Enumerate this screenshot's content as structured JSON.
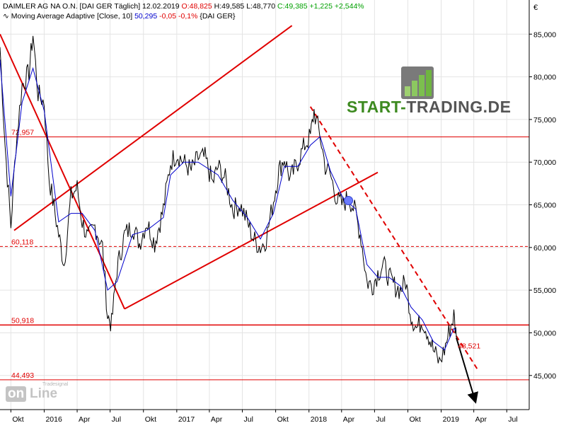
{
  "header": {
    "line1": {
      "instrument": "DAIMLER AG NA O.N. [DAI GER",
      "frequency": "Täglich]",
      "date": "12.02.2019",
      "open": "O:48,825",
      "high": "H:49,585",
      "low": "L:48,770",
      "close": "C:49,385",
      "change": "+1,225",
      "change_pct": "+2,544%"
    },
    "line2": {
      "label": "Moving Average Adaptive [Close, 10]",
      "value": "50,295",
      "change": "-0,05",
      "change_pct": "-0,1%",
      "exchange": "{DAI GER}"
    }
  },
  "watermark": {
    "brand_a": "START-",
    "brand_b": "TRADING.DE",
    "logo_a": "on",
    "logo_b": "Line",
    "logo_small": "Tradesignal"
  },
  "colors": {
    "price": "#000000",
    "ma": "#0000cc",
    "trend": "#e00000",
    "marker": "#6c7cff",
    "brand_green": "#3d8a20",
    "brand_gray": "#555555"
  },
  "chart_data": {
    "type": "line",
    "currency": "€",
    "x_range": [
      "2015-09-01",
      "2019-09-01"
    ],
    "ylim": [
      41,
      89
    ],
    "yticks": [
      45000,
      50000,
      55000,
      60000,
      65000,
      70000,
      75000,
      80000,
      85000
    ],
    "ytick_labels": [
      "45,000",
      "50,000",
      "55,000",
      "60,000",
      "65,000",
      "70,000",
      "75,000",
      "80,000",
      "85,000"
    ],
    "xticks": [
      {
        "label": "Okt",
        "date": "2015-10-01"
      },
      {
        "label": "2016",
        "date": "2016-01-01"
      },
      {
        "label": "Apr",
        "date": "2016-04-01"
      },
      {
        "label": "Jul",
        "date": "2016-07-01"
      },
      {
        "label": "Okt",
        "date": "2016-10-01"
      },
      {
        "label": "2017",
        "date": "2017-01-01"
      },
      {
        "label": "Apr",
        "date": "2017-04-01"
      },
      {
        "label": "Jul",
        "date": "2017-07-01"
      },
      {
        "label": "Okt",
        "date": "2017-10-01"
      },
      {
        "label": "2018",
        "date": "2018-01-01"
      },
      {
        "label": "Apr",
        "date": "2018-04-01"
      },
      {
        "label": "Jul",
        "date": "2018-07-01"
      },
      {
        "label": "Okt",
        "date": "2018-10-01"
      },
      {
        "label": "2019",
        "date": "2019-01-01"
      },
      {
        "label": "Apr",
        "date": "2019-04-01"
      },
      {
        "label": "Jul",
        "date": "2019-07-01"
      }
    ],
    "horizontal_levels": [
      {
        "value": 72.957,
        "label": "72,957",
        "style": "solid"
      },
      {
        "value": 60.118,
        "label": "60,118",
        "style": "dashed"
      },
      {
        "value": 50.918,
        "label": "50,918",
        "style": "solid"
      },
      {
        "value": 44.493,
        "label": "44,493",
        "style": "solid"
      }
    ],
    "trend_lines": [
      {
        "from": [
          "2015-09-01",
          85.0
        ],
        "to": [
          "2016-08-10",
          52.8
        ],
        "style": "solid"
      },
      {
        "from": [
          "2015-10-10",
          62.0
        ],
        "to": [
          "2017-11-15",
          86.0
        ],
        "style": "solid"
      },
      {
        "from": [
          "2016-08-10",
          52.8
        ],
        "to": [
          "2018-07-10",
          68.8
        ],
        "style": "solid"
      },
      {
        "from": [
          "2018-01-05",
          76.5
        ],
        "to": [
          "2019-04-10",
          45.8
        ],
        "style": "dashed"
      },
      {
        "from": [
          "2019-02-12",
          49.4
        ],
        "to": [
          "2019-04-05",
          42.0
        ],
        "style": "arrow"
      }
    ],
    "annotations": [
      {
        "label": "48,521",
        "date": "2019-02-12",
        "value": 48.521
      },
      {
        "marker": "circle",
        "date": "2018-04-20",
        "value": 65.5
      }
    ],
    "series": [
      {
        "name": "DAIMLER AG NA O.N.",
        "points": [
          [
            "2015-09-01",
            83.5
          ],
          [
            "2015-09-15",
            72.0
          ],
          [
            "2015-10-01",
            62.5
          ],
          [
            "2015-10-15",
            72.0
          ],
          [
            "2015-11-01",
            79.0
          ],
          [
            "2015-11-20",
            80.5
          ],
          [
            "2015-12-01",
            85.0
          ],
          [
            "2015-12-15",
            78.0
          ],
          [
            "2016-01-01",
            77.0
          ],
          [
            "2016-01-15",
            68.0
          ],
          [
            "2016-02-10",
            61.5
          ],
          [
            "2016-02-25",
            58.0
          ],
          [
            "2016-03-15",
            66.0
          ],
          [
            "2016-04-01",
            67.0
          ],
          [
            "2016-04-15",
            63.0
          ],
          [
            "2016-05-01",
            61.0
          ],
          [
            "2016-05-20",
            62.5
          ],
          [
            "2016-06-10",
            60.0
          ],
          [
            "2016-06-24",
            52.0
          ],
          [
            "2016-07-05",
            51.0
          ],
          [
            "2016-07-20",
            57.5
          ],
          [
            "2016-08-10",
            61.5
          ],
          [
            "2016-09-01",
            62.5
          ],
          [
            "2016-09-20",
            60.5
          ],
          [
            "2016-10-10",
            63.0
          ],
          [
            "2016-11-01",
            60.5
          ],
          [
            "2016-11-25",
            64.5
          ],
          [
            "2016-12-15",
            70.0
          ],
          [
            "2017-01-01",
            71.0
          ],
          [
            "2017-01-20",
            70.0
          ],
          [
            "2017-02-10",
            69.0
          ],
          [
            "2017-03-01",
            70.5
          ],
          [
            "2017-03-20",
            70.5
          ],
          [
            "2017-04-10",
            67.5
          ],
          [
            "2017-04-25",
            69.5
          ],
          [
            "2017-05-15",
            68.0
          ],
          [
            "2017-06-05",
            64.5
          ],
          [
            "2017-06-25",
            65.0
          ],
          [
            "2017-07-15",
            63.0
          ],
          [
            "2017-08-01",
            61.0
          ],
          [
            "2017-08-20",
            60.0
          ],
          [
            "2017-09-05",
            61.0
          ],
          [
            "2017-09-25",
            65.5
          ],
          [
            "2017-10-10",
            69.0
          ],
          [
            "2017-10-25",
            70.5
          ],
          [
            "2017-11-10",
            68.0
          ],
          [
            "2017-12-01",
            70.0
          ],
          [
            "2017-12-20",
            72.0
          ],
          [
            "2018-01-05",
            73.0
          ],
          [
            "2018-01-15",
            76.0
          ],
          [
            "2018-02-01",
            73.0
          ],
          [
            "2018-02-15",
            69.5
          ],
          [
            "2018-03-01",
            68.5
          ],
          [
            "2018-03-20",
            65.5
          ],
          [
            "2018-04-05",
            65.0
          ],
          [
            "2018-04-20",
            66.0
          ],
          [
            "2018-05-10",
            64.0
          ],
          [
            "2018-05-25",
            61.0
          ],
          [
            "2018-06-10",
            56.0
          ],
          [
            "2018-06-25",
            55.5
          ],
          [
            "2018-07-10",
            57.0
          ],
          [
            "2018-07-25",
            58.0
          ],
          [
            "2018-08-10",
            56.5
          ],
          [
            "2018-08-25",
            55.5
          ],
          [
            "2018-09-10",
            55.0
          ],
          [
            "2018-09-25",
            56.0
          ],
          [
            "2018-10-10",
            52.0
          ],
          [
            "2018-10-25",
            50.5
          ],
          [
            "2018-11-10",
            51.5
          ],
          [
            "2018-11-25",
            50.0
          ],
          [
            "2018-12-10",
            48.0
          ],
          [
            "2018-12-27",
            46.5
          ],
          [
            "2019-01-10",
            48.0
          ],
          [
            "2019-01-25",
            50.5
          ],
          [
            "2019-02-05",
            52.0
          ],
          [
            "2019-02-12",
            49.4
          ]
        ]
      },
      {
        "name": "Moving Average Adaptive [Close, 10]",
        "points": [
          [
            "2015-09-01",
            82.0
          ],
          [
            "2015-10-01",
            66.0
          ],
          [
            "2015-11-01",
            77.0
          ],
          [
            "2015-12-01",
            81.0
          ],
          [
            "2016-01-01",
            76.0
          ],
          [
            "2016-02-10",
            63.0
          ],
          [
            "2016-03-15",
            64.0
          ],
          [
            "2016-04-15",
            64.0
          ],
          [
            "2016-05-20",
            62.0
          ],
          [
            "2016-06-24",
            55.0
          ],
          [
            "2016-07-20",
            56.0
          ],
          [
            "2016-09-01",
            61.5
          ],
          [
            "2016-10-10",
            62.0
          ],
          [
            "2016-11-25",
            63.5
          ],
          [
            "2016-12-15",
            68.5
          ],
          [
            "2017-01-20",
            70.0
          ],
          [
            "2017-03-01",
            70.0
          ],
          [
            "2017-04-25",
            68.5
          ],
          [
            "2017-06-05",
            65.5
          ],
          [
            "2017-07-15",
            63.5
          ],
          [
            "2017-08-20",
            61.0
          ],
          [
            "2017-09-25",
            64.0
          ],
          [
            "2017-10-25",
            69.5
          ],
          [
            "2017-12-01",
            69.5
          ],
          [
            "2018-01-05",
            72.0
          ],
          [
            "2018-02-01",
            73.0
          ],
          [
            "2018-03-01",
            69.0
          ],
          [
            "2018-04-05",
            65.8
          ],
          [
            "2018-05-10",
            64.5
          ],
          [
            "2018-06-10",
            58.0
          ],
          [
            "2018-07-10",
            56.5
          ],
          [
            "2018-08-10",
            56.5
          ],
          [
            "2018-09-10",
            55.5
          ],
          [
            "2018-10-10",
            53.0
          ],
          [
            "2018-11-10",
            51.5
          ],
          [
            "2018-12-10",
            49.0
          ],
          [
            "2019-01-10",
            48.0
          ],
          [
            "2019-02-05",
            50.5
          ],
          [
            "2019-02-12",
            50.295
          ]
        ]
      }
    ]
  }
}
